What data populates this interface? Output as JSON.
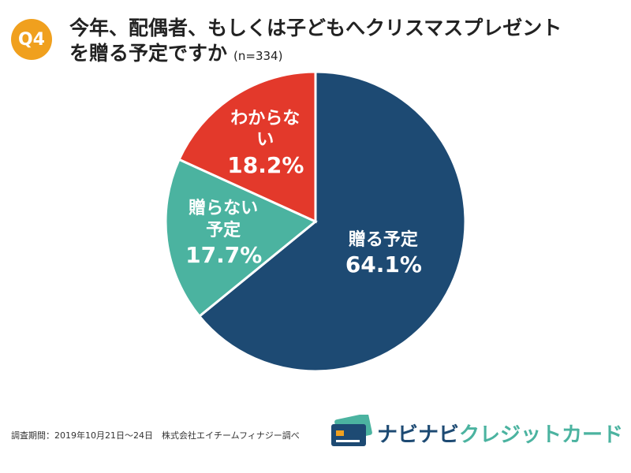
{
  "badge": "Q4",
  "chart_data": {
    "type": "pie",
    "title": [
      "今年、配偶者、もしくは子どもへクリスマスプレゼント",
      "を贈る予定ですか"
    ],
    "subtitle": "(n=334)",
    "categories": [
      "贈る予定",
      "贈らない予定",
      "わからない"
    ],
    "values": [
      64.1,
      17.7,
      18.2
    ],
    "value_labels": [
      "64.1%",
      "17.7%",
      "18.2%"
    ],
    "colors": [
      "#1d4a73",
      "#4bb3a0",
      "#e3392b"
    ]
  },
  "footnote": "調査期間：2019年10月21日～24日　株式会社エイチームフィナジー調べ",
  "logo": [
    "ナビナビ",
    "クレジットカード"
  ]
}
